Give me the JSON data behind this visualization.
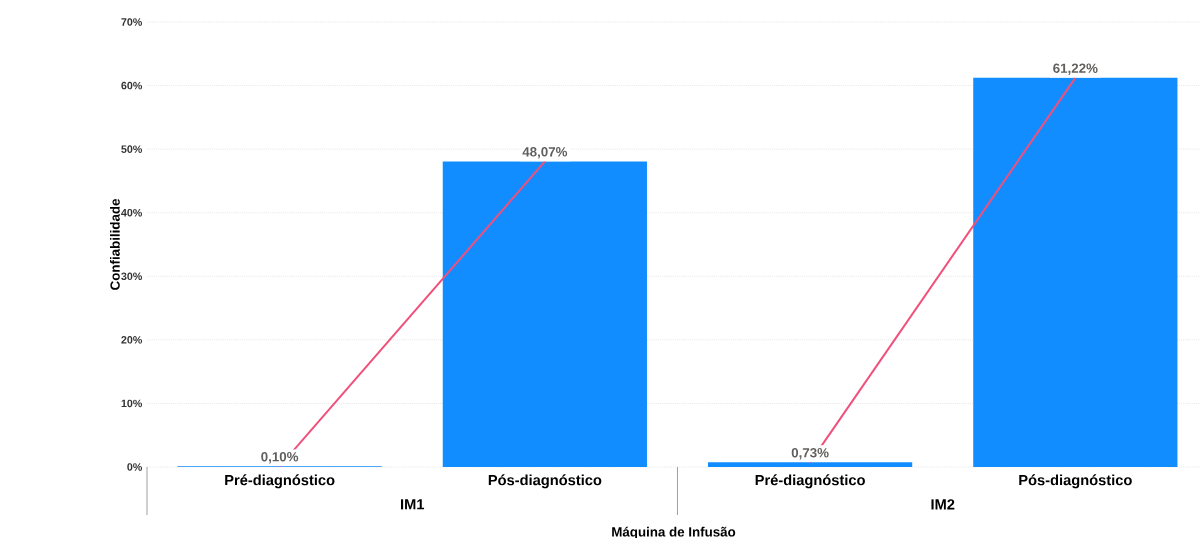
{
  "chart_data": {
    "type": "bar",
    "ylabel": "Confiabilidade",
    "xlabel": "Máquina de Infusão",
    "categories": [
      "Pré-diagnóstico",
      "Pós-diagnóstico",
      "Pré-diagnóstico",
      "Pós-diagnóstico"
    ],
    "series": [
      {
        "color": "#118dff",
        "values": [
          0.1,
          48.07,
          0.73,
          61.22
        ],
        "value_labels": [
          "0,10%",
          "48,07%",
          "0,73%",
          "61,22%"
        ]
      },
      {
        "type": "line",
        "color": "#f0507a",
        "values": [
          0.1,
          48.07,
          null,
          null
        ]
      },
      {
        "type": "line",
        "color": "#f0507a",
        "values": [
          null,
          null,
          0.73,
          61.22
        ]
      }
    ],
    "annotations": [
      "IM1",
      "IM2"
    ],
    "ylim": [
      0,
      70
    ],
    "yticks": [
      {
        "value": 0,
        "label": "0%"
      },
      {
        "value": 10,
        "label": "10%"
      },
      {
        "value": 20,
        "label": "20%"
      },
      {
        "value": 30,
        "label": "30%"
      },
      {
        "value": 40,
        "label": "40%"
      },
      {
        "value": 50,
        "label": "50%"
      },
      {
        "value": 60,
        "label": "60%"
      },
      {
        "value": 70,
        "label": "70%"
      }
    ],
    "grid": "y"
  }
}
